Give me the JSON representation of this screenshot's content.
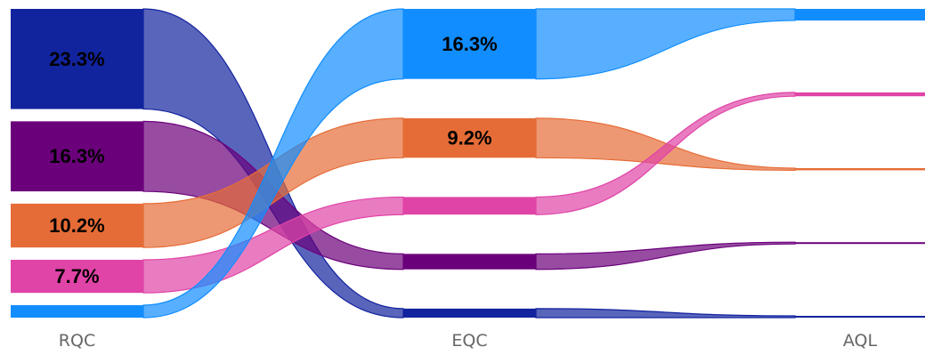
{
  "chart_data": {
    "type": "sankey",
    "stages": [
      "RQC",
      "EQC",
      "AQL"
    ],
    "series": [
      {
        "key": "s1",
        "color": "#12239e",
        "values": [
          23.3,
          2.1,
          0.2
        ],
        "labels": [
          "23.3%",
          "",
          ""
        ]
      },
      {
        "key": "s2",
        "color": "#6b007b",
        "values": [
          16.3,
          3.6,
          0.4
        ],
        "labels": [
          "16.3%",
          "",
          ""
        ]
      },
      {
        "key": "s3",
        "color": "#e66c37",
        "values": [
          10.2,
          9.2,
          0.5
        ],
        "labels": [
          "10.2%",
          "9.2%",
          ""
        ]
      },
      {
        "key": "s4",
        "color": "#e044a7",
        "values": [
          7.7,
          4.1,
          0.9
        ],
        "labels": [
          "7.7%",
          "",
          ""
        ]
      },
      {
        "key": "s5",
        "color": "#118dff",
        "values": [
          2.9,
          16.3,
          2.7
        ],
        "labels": [
          "",
          "16.3%",
          ""
        ]
      }
    ]
  }
}
